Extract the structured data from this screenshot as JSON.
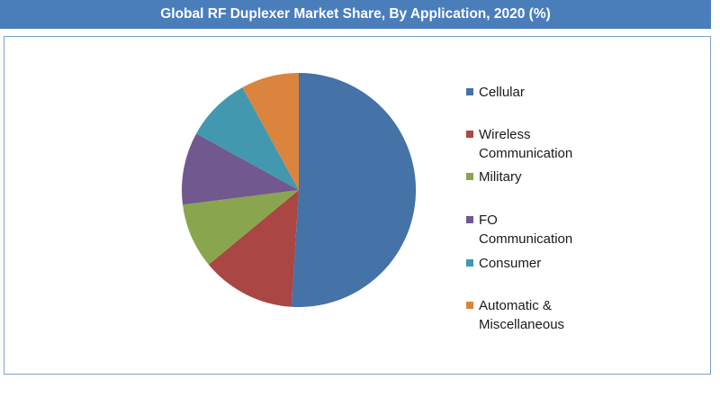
{
  "header": {
    "title": "Global RF Duplexer Market Share, By Application, 2020 (%)"
  },
  "chart_data": {
    "type": "pie",
    "title": "Global RF Duplexer Market Share, By Application, 2020 (%)",
    "legend_position": "right",
    "start_angle_deg": 0,
    "direction": "clockwise",
    "slices": [
      {
        "label": "Cellular",
        "value": 51,
        "color": "#4572a7"
      },
      {
        "label": "Wireless Communication",
        "value": 13,
        "color": "#aa4643"
      },
      {
        "label": "Military",
        "value": 9,
        "color": "#89a54e"
      },
      {
        "label": "FO Communication",
        "value": 10,
        "color": "#71588f"
      },
      {
        "label": "Consumer",
        "value": 9,
        "color": "#4198af"
      },
      {
        "label": "Automatic & Miscellaneous",
        "value": 8,
        "color": "#db843d"
      }
    ]
  },
  "legend": {
    "items": [
      {
        "line1": "Cellular",
        "line2": ""
      },
      {
        "line1": "Wireless",
        "line2": "Communication"
      },
      {
        "line1": "Military",
        "line2": ""
      },
      {
        "line1": "FO",
        "line2": "Communication"
      },
      {
        "line1": "Consumer",
        "line2": ""
      },
      {
        "line1": "Automatic &",
        "line2": "Miscellaneous"
      }
    ]
  }
}
